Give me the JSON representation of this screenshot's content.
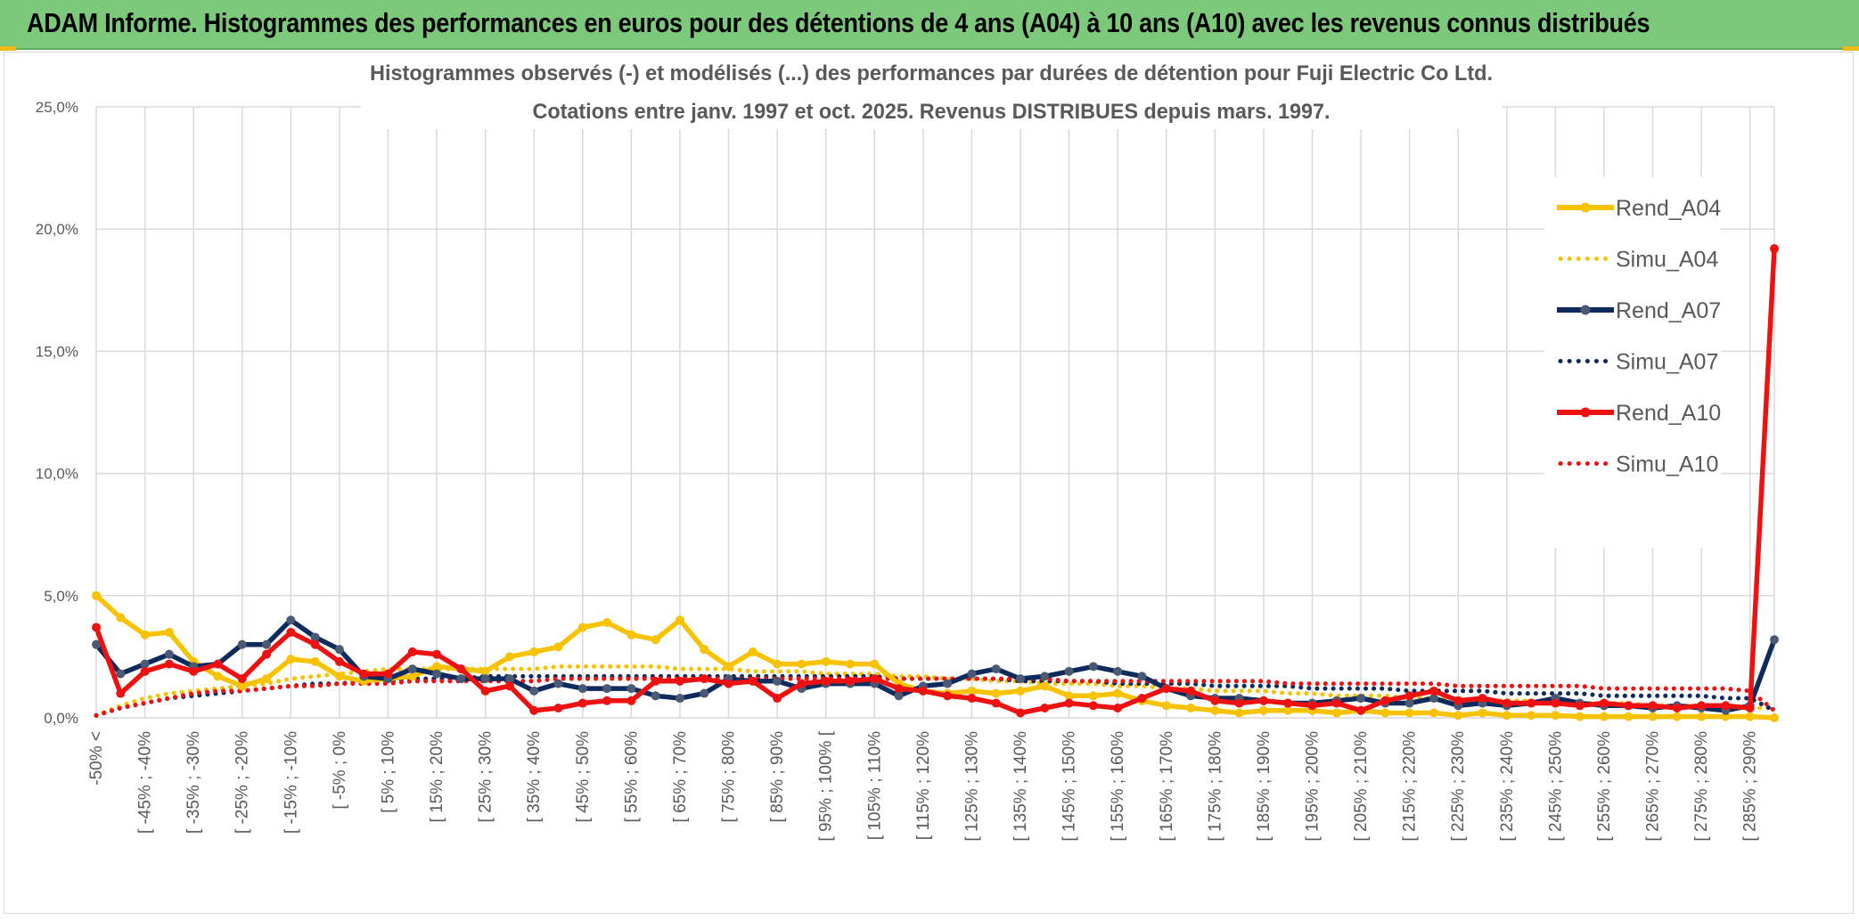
{
  "header": {
    "title": "ADAM Informe. Histogrammes des performances en euros pour des détentions de 4 ans (A04) à 10 ans (A10) avec les revenus connus distribués"
  },
  "colors": {
    "banner": "#7dc97b",
    "grid": "#d9d9d9",
    "axis_text": "#595959",
    "rend_a04": "#f7c200",
    "rend_a07": "#0f2a5c",
    "rend_a07_marker": "#4a5a75",
    "rend_a10": "#ee1111"
  },
  "chart_data": {
    "type": "line",
    "title": "Histogrammes observés (-) et modélisés (...) des performances par durées de détention pour Fuji Electric Co Ltd.",
    "subtitle": "Cotations entre janv. 1997 et oct. 2025. Revenus DISTRIBUES depuis mars. 1997.",
    "ylim": [
      0,
      25
    ],
    "yticks": [
      "0,0%",
      "5,0%",
      "10,0%",
      "15,0%",
      "20,0%",
      "25,0%"
    ],
    "yticks_values": [
      0,
      5,
      10,
      15,
      20,
      25
    ],
    "tick_labels": [
      "-50% <",
      "[ -45% ; -40%",
      "[ -35% ; -30%",
      "[ -25% ; -20%",
      "[ -15% ; -10%",
      "[ -5% ; 0%",
      "[ 5% ; 10%",
      "[ 15% ; 20%",
      "[ 25% ; 30%",
      "[ 35% ; 40%",
      "[ 45% ; 50%",
      "[ 55% ; 60%",
      "[ 65% ; 70%",
      "[ 75% ; 80%",
      "[ 85% ; 90%",
      "[ 95% ; 100% [",
      "[ 105% ; 110%",
      "[ 115% ; 120%",
      "[ 125% ; 130%",
      "[ 135% ; 140%",
      "[ 145% ; 150%",
      "[ 155% ; 160%",
      "[ 165% ; 170%",
      "[ 175% ; 180%",
      "[ 185% ; 190%",
      "[ 195% ; 200%",
      "[ 205% ; 210%",
      "[ 215% ; 220%",
      "[ 225% ; 230%",
      "[ 235% ; 240%",
      "[ 245% ; 250%",
      "[ 255% ; 260%",
      "[ 265% ; 270%",
      "[ 275% ; 280%",
      "[ 285% ; 290%"
    ],
    "n_points": 70,
    "legend": [
      "Rend_A04",
      "Simu_A04",
      "Rend_A07",
      "Simu_A07",
      "Rend_A10",
      "Simu_A10"
    ],
    "legend_position": "right",
    "series": [
      {
        "name": "Rend_A04",
        "style": "solid",
        "values": [
          5.0,
          4.1,
          3.4,
          3.5,
          2.3,
          1.7,
          1.3,
          1.6,
          2.4,
          2.3,
          1.7,
          1.5,
          1.6,
          1.7,
          2.1,
          2.0,
          1.9,
          2.5,
          2.7,
          2.9,
          3.7,
          3.9,
          3.4,
          3.2,
          4.0,
          2.8,
          2.1,
          2.7,
          2.2,
          2.2,
          2.3,
          2.2,
          2.2,
          1.4,
          1.1,
          1.0,
          1.1,
          1.0,
          1.1,
          1.3,
          0.9,
          0.9,
          1.0,
          0.7,
          0.5,
          0.4,
          0.3,
          0.2,
          0.3,
          0.3,
          0.3,
          0.2,
          0.3,
          0.2,
          0.2,
          0.2,
          0.1,
          0.2,
          0.1,
          0.1,
          0.1,
          0.05,
          0.05,
          0.05,
          0.05,
          0.05,
          0.05,
          0.05,
          0.05,
          0.0
        ]
      },
      {
        "name": "Simu_A04",
        "style": "dotted",
        "values": [
          0.1,
          0.5,
          0.8,
          1.0,
          1.1,
          1.2,
          1.3,
          1.4,
          1.6,
          1.7,
          1.8,
          1.9,
          2.0,
          2.0,
          2.0,
          2.0,
          2.0,
          2.0,
          2.0,
          2.1,
          2.1,
          2.1,
          2.1,
          2.1,
          2.0,
          2.0,
          2.0,
          1.9,
          1.9,
          1.9,
          1.8,
          1.8,
          1.8,
          1.7,
          1.7,
          1.6,
          1.6,
          1.5,
          1.5,
          1.4,
          1.4,
          1.4,
          1.3,
          1.3,
          1.2,
          1.2,
          1.1,
          1.1,
          1.1,
          1.0,
          1.0,
          0.9,
          0.9,
          0.9,
          0.8,
          0.8,
          0.8,
          0.7,
          0.7,
          0.7,
          0.6,
          0.6,
          0.6,
          0.6,
          0.5,
          0.5,
          0.5,
          0.5,
          0.4,
          0.4
        ]
      },
      {
        "name": "Rend_A07",
        "style": "solid",
        "values": [
          3.0,
          1.8,
          2.2,
          2.6,
          2.1,
          2.2,
          3.0,
          3.0,
          4.0,
          3.3,
          2.8,
          1.7,
          1.6,
          2.0,
          1.8,
          1.6,
          1.6,
          1.6,
          1.1,
          1.4,
          1.2,
          1.2,
          1.2,
          0.9,
          0.8,
          1.0,
          1.6,
          1.5,
          1.5,
          1.2,
          1.4,
          1.4,
          1.4,
          0.9,
          1.3,
          1.4,
          1.8,
          2.0,
          1.6,
          1.7,
          1.9,
          2.1,
          1.9,
          1.7,
          1.2,
          0.9,
          0.8,
          0.8,
          0.7,
          0.6,
          0.6,
          0.7,
          0.8,
          0.6,
          0.6,
          0.8,
          0.5,
          0.6,
          0.5,
          0.6,
          0.8,
          0.6,
          0.5,
          0.5,
          0.4,
          0.5,
          0.4,
          0.3,
          0.5,
          3.2
        ]
      },
      {
        "name": "Simu_A07",
        "style": "dotted",
        "values": [
          0.1,
          0.4,
          0.6,
          0.8,
          0.9,
          1.0,
          1.1,
          1.2,
          1.3,
          1.4,
          1.4,
          1.5,
          1.5,
          1.6,
          1.6,
          1.6,
          1.7,
          1.7,
          1.7,
          1.7,
          1.7,
          1.7,
          1.7,
          1.7,
          1.7,
          1.7,
          1.7,
          1.7,
          1.7,
          1.7,
          1.7,
          1.7,
          1.7,
          1.6,
          1.6,
          1.6,
          1.6,
          1.6,
          1.5,
          1.5,
          1.5,
          1.5,
          1.4,
          1.4,
          1.4,
          1.4,
          1.3,
          1.3,
          1.3,
          1.3,
          1.2,
          1.2,
          1.2,
          1.2,
          1.1,
          1.1,
          1.1,
          1.1,
          1.0,
          1.0,
          1.0,
          1.0,
          0.9,
          0.9,
          0.9,
          0.9,
          0.9,
          0.8,
          0.8,
          0.3
        ]
      },
      {
        "name": "Rend_A10",
        "style": "solid",
        "values": [
          3.7,
          1.0,
          1.9,
          2.2,
          1.9,
          2.2,
          1.6,
          2.6,
          3.5,
          3.0,
          2.3,
          1.8,
          1.8,
          2.7,
          2.6,
          2.0,
          1.1,
          1.3,
          0.3,
          0.4,
          0.6,
          0.7,
          0.7,
          1.5,
          1.5,
          1.6,
          1.4,
          1.5,
          0.8,
          1.4,
          1.5,
          1.5,
          1.6,
          1.2,
          1.1,
          0.9,
          0.8,
          0.6,
          0.2,
          0.4,
          0.6,
          0.5,
          0.4,
          0.8,
          1.2,
          1.1,
          0.7,
          0.6,
          0.7,
          0.6,
          0.5,
          0.6,
          0.3,
          0.7,
          0.9,
          1.1,
          0.7,
          0.8,
          0.6,
          0.6,
          0.6,
          0.5,
          0.6,
          0.5,
          0.5,
          0.4,
          0.5,
          0.5,
          0.4,
          19.2
        ]
      },
      {
        "name": "Simu_A10",
        "style": "dotted",
        "values": [
          0.1,
          0.4,
          0.6,
          0.8,
          1.0,
          1.1,
          1.1,
          1.2,
          1.3,
          1.3,
          1.4,
          1.4,
          1.4,
          1.5,
          1.5,
          1.5,
          1.5,
          1.5,
          1.5,
          1.6,
          1.6,
          1.6,
          1.6,
          1.6,
          1.6,
          1.6,
          1.6,
          1.6,
          1.6,
          1.6,
          1.6,
          1.6,
          1.6,
          1.6,
          1.6,
          1.6,
          1.6,
          1.6,
          1.6,
          1.6,
          1.5,
          1.5,
          1.5,
          1.5,
          1.5,
          1.5,
          1.5,
          1.5,
          1.5,
          1.4,
          1.4,
          1.4,
          1.4,
          1.4,
          1.4,
          1.4,
          1.3,
          1.3,
          1.3,
          1.3,
          1.3,
          1.3,
          1.2,
          1.2,
          1.2,
          1.2,
          1.2,
          1.2,
          1.1,
          0.3
        ]
      }
    ]
  }
}
